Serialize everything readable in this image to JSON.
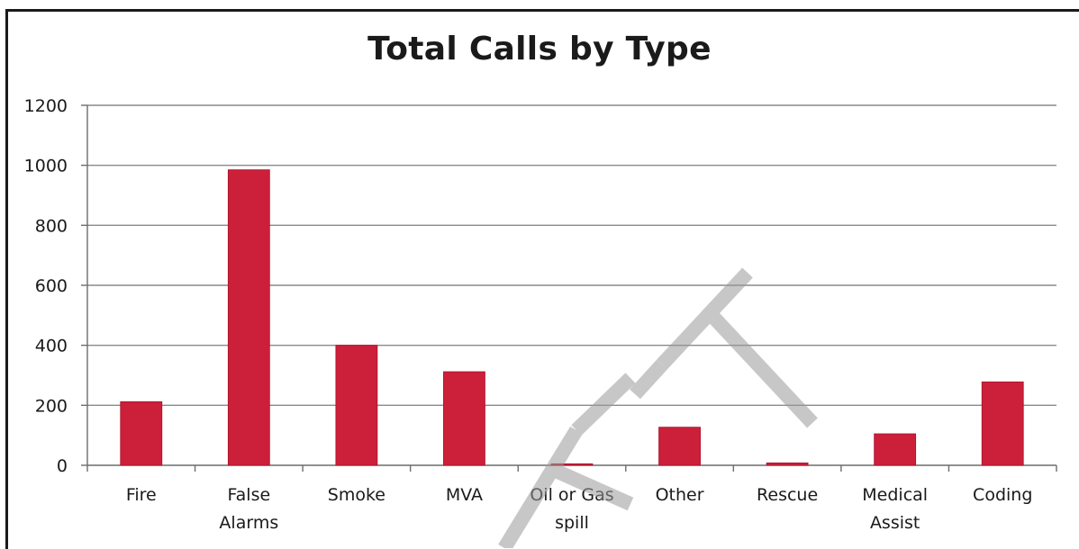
{
  "chart_data": {
    "type": "bar",
    "title": "Total Calls by Type",
    "xlabel": "",
    "ylabel": "",
    "categories": [
      [
        "Fire"
      ],
      [
        "False",
        "Alarms"
      ],
      [
        "Smoke"
      ],
      [
        "MVA"
      ],
      [
        "Oil or Gas",
        "spill"
      ],
      [
        "Other"
      ],
      [
        "Rescue"
      ],
      [
        "Medical",
        "Assist"
      ],
      [
        "Coding"
      ]
    ],
    "values": [
      212,
      985,
      400,
      312,
      5,
      127,
      8,
      105,
      278
    ],
    "ylim": [
      0,
      1200
    ],
    "yticks": [
      "0",
      "200",
      "400",
      "600",
      "800",
      "1000",
      "1200"
    ],
    "grid": true,
    "bar_color": "#cc1f3a",
    "watermark": "DRAFT"
  }
}
